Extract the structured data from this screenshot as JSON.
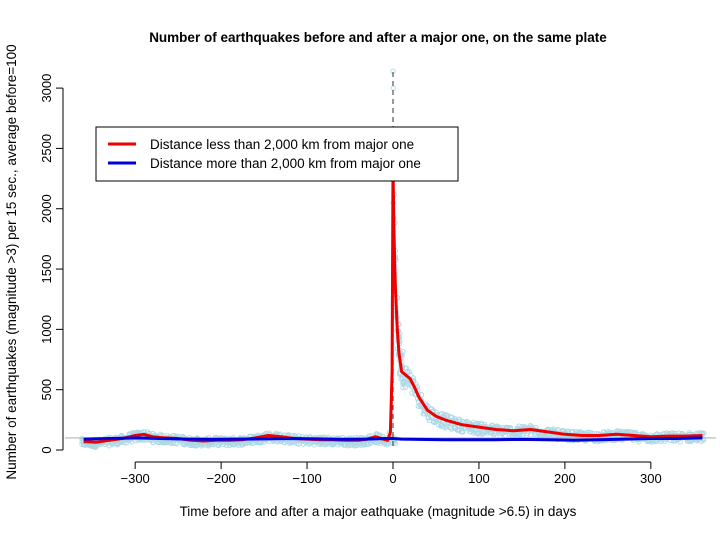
{
  "chart_data": {
    "type": "scatter",
    "title": "Number of earthquakes before and after a major one, on the same plate",
    "xlabel": "Time before and after a major eathquake (magnitude >6.5) in days",
    "ylabel": "Number of earthquakes (magnitude >3) per 15 sec., average before=100",
    "xlim": [
      -370,
      370
    ],
    "ylim": [
      0,
      3150
    ],
    "x_ticks": [
      -300,
      -200,
      -100,
      0,
      100,
      200,
      300
    ],
    "x_tick_labels": [
      "−300",
      "−200",
      "−100",
      "0",
      "100",
      "200",
      "300"
    ],
    "y_ticks": [
      0,
      500,
      1000,
      1500,
      2000,
      2500,
      3000
    ],
    "y_tick_labels": [
      "0",
      "500",
      "1000",
      "1500",
      "2000",
      "2500",
      "3000"
    ],
    "vertical_reference_line_x": 0,
    "horizontal_reference_line_y": 100,
    "grid": false,
    "legend_position": "top-left",
    "points_color": "#add8e6",
    "series": [
      {
        "name": "Distance less than 2,000 km from major one",
        "color": "#ee0000",
        "x": [
          -360,
          -345,
          -330,
          -315,
          -300,
          -290,
          -280,
          -265,
          -250,
          -235,
          -220,
          -205,
          -190,
          -175,
          -160,
          -145,
          -130,
          -115,
          -100,
          -85,
          -70,
          -55,
          -40,
          -30,
          -20,
          -12,
          -6,
          -3,
          -1,
          0,
          1,
          2,
          3,
          5,
          7,
          10,
          15,
          20,
          25,
          30,
          40,
          50,
          60,
          80,
          100,
          120,
          140,
          160,
          180,
          200,
          220,
          240,
          260,
          280,
          300,
          320,
          340,
          360
        ],
        "values": [
          70,
          65,
          80,
          95,
          120,
          130,
          110,
          100,
          95,
          80,
          75,
          80,
          80,
          85,
          100,
          120,
          110,
          95,
          90,
          85,
          85,
          80,
          80,
          90,
          110,
          90,
          80,
          150,
          650,
          2350,
          1850,
          1550,
          1300,
          1000,
          800,
          650,
          620,
          590,
          520,
          440,
          330,
          280,
          250,
          210,
          190,
          170,
          160,
          170,
          150,
          130,
          120,
          120,
          130,
          120,
          110,
          115,
          115,
          120
        ]
      },
      {
        "name": "Distance more than 2,000 km from major one",
        "color": "#0000dd",
        "x": [
          -360,
          -330,
          -300,
          -270,
          -240,
          -210,
          -180,
          -150,
          -120,
          -90,
          -60,
          -30,
          -10,
          0,
          10,
          30,
          60,
          90,
          120,
          150,
          180,
          210,
          240,
          270,
          300,
          330,
          360
        ],
        "values": [
          90,
          95,
          100,
          95,
          90,
          88,
          90,
          92,
          95,
          92,
          88,
          90,
          95,
          95,
          90,
          88,
          85,
          85,
          85,
          88,
          85,
          80,
          85,
          90,
          95,
          95,
          100
        ]
      }
    ]
  }
}
